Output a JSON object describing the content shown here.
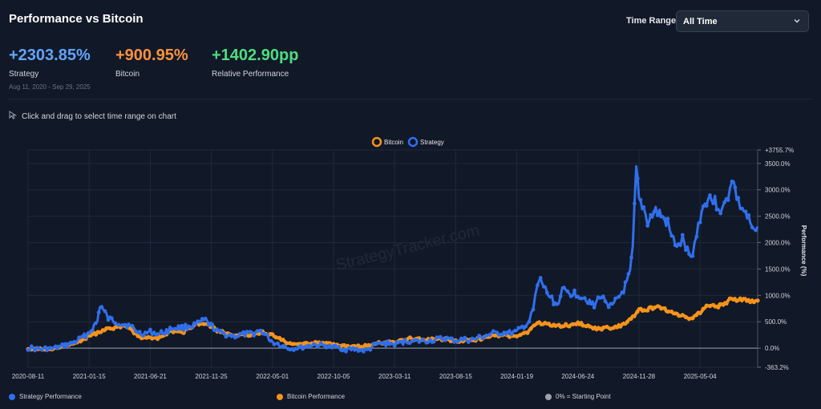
{
  "header": {
    "title": "Performance vs Bitcoin",
    "time_range_label": "Time Range:",
    "time_range_value": "All Time"
  },
  "stats": {
    "strategy": {
      "value": "+2303.85%",
      "label": "Strategy",
      "color": "#60a5fa"
    },
    "bitcoin": {
      "value": "+900.95%",
      "label": "Bitcoin",
      "color": "#fb923c"
    },
    "relative": {
      "value": "+1402.90pp",
      "label": "Relative Performance",
      "color": "#4ade80"
    },
    "date_range": "Aug 11, 2020 - Sep 29, 2025"
  },
  "hint": "Click and drag to select time range on chart",
  "watermark": "StrategyTracker.com",
  "bottom_legend": {
    "strategy": "Strategy Performance",
    "bitcoin": "Bitcoin Performance",
    "baseline": "0% = Starting Point"
  },
  "chart_data": {
    "type": "line",
    "ylabel": "Performance (%)",
    "ylim": [
      -363.2,
      3755.7
    ],
    "y_ticks": [
      -363.2,
      0,
      500,
      1000,
      1500,
      2000,
      2500,
      3000,
      3500,
      3755.7
    ],
    "y_tick_labels": [
      "-363.2%",
      "0.0%",
      "500.0%",
      "1000.0%",
      "1500.0%",
      "2000.0%",
      "2500.0%",
      "3000.0%",
      "3500.0%",
      "+3755.7%"
    ],
    "x_tick_labels": [
      "2020-08-11",
      "2021-01-15",
      "2021-06-21",
      "2021-11-25",
      "2022-05-01",
      "2022-10-05",
      "2023-03-11",
      "2023-08-15",
      "2024-01-19",
      "2024-06-24",
      "2024-11-28",
      "2025-05-04"
    ],
    "x_range": [
      "2020-08-11",
      "2025-09-29"
    ],
    "legend_position": "top-center",
    "series": [
      {
        "name": "Bitcoin",
        "color": "#f7931a",
        "points": [
          [
            "2020-08-11",
            0
          ],
          [
            "2020-09-20",
            -20
          ],
          [
            "2020-10-25",
            10
          ],
          [
            "2020-11-20",
            60
          ],
          [
            "2020-12-20",
            120
          ],
          [
            "2021-01-15",
            230
          ],
          [
            "2021-02-10",
            310
          ],
          [
            "2021-03-05",
            360
          ],
          [
            "2021-04-10",
            430
          ],
          [
            "2021-05-01",
            380
          ],
          [
            "2021-05-25",
            200
          ],
          [
            "2021-06-21",
            180
          ],
          [
            "2021-07-15",
            190
          ],
          [
            "2021-08-15",
            320
          ],
          [
            "2021-09-15",
            310
          ],
          [
            "2021-10-20",
            450
          ],
          [
            "2021-11-10",
            480
          ],
          [
            "2021-12-10",
            340
          ],
          [
            "2022-01-20",
            250
          ],
          [
            "2022-03-05",
            240
          ],
          [
            "2022-04-01",
            300
          ],
          [
            "2022-05-01",
            250
          ],
          [
            "2022-06-20",
            60
          ],
          [
            "2022-08-15",
            110
          ],
          [
            "2022-10-05",
            70
          ],
          [
            "2022-11-15",
            30
          ],
          [
            "2022-12-30",
            40
          ],
          [
            "2023-01-25",
            100
          ],
          [
            "2023-03-11",
            110
          ],
          [
            "2023-04-15",
            180
          ],
          [
            "2023-06-15",
            160
          ],
          [
            "2023-07-15",
            170
          ],
          [
            "2023-08-15",
            130
          ],
          [
            "2023-10-01",
            150
          ],
          [
            "2023-11-15",
            230
          ],
          [
            "2024-01-19",
            240
          ],
          [
            "2024-02-20",
            320
          ],
          [
            "2024-03-12",
            480
          ],
          [
            "2024-04-10",
            450
          ],
          [
            "2024-05-15",
            420
          ],
          [
            "2024-06-24",
            470
          ],
          [
            "2024-07-20",
            430
          ],
          [
            "2024-08-20",
            360
          ],
          [
            "2024-09-20",
            400
          ],
          [
            "2024-10-20",
            450
          ],
          [
            "2024-11-12",
            590
          ],
          [
            "2024-11-28",
            720
          ],
          [
            "2024-12-20",
            740
          ],
          [
            "2025-01-20",
            780
          ],
          [
            "2025-02-20",
            680
          ],
          [
            "2025-03-20",
            610
          ],
          [
            "2025-04-10",
            560
          ],
          [
            "2025-05-04",
            690
          ],
          [
            "2025-05-25",
            810
          ],
          [
            "2025-06-20",
            790
          ],
          [
            "2025-07-15",
            900
          ],
          [
            "2025-08-15",
            930
          ],
          [
            "2025-09-10",
            880
          ],
          [
            "2025-09-29",
            900.95
          ]
        ]
      },
      {
        "name": "Strategy",
        "color": "#2f6fed",
        "points": [
          [
            "2020-08-11",
            0
          ],
          [
            "2020-09-20",
            -20
          ],
          [
            "2020-10-25",
            0
          ],
          [
            "2020-11-20",
            60
          ],
          [
            "2020-12-20",
            160
          ],
          [
            "2021-01-15",
            300
          ],
          [
            "2021-02-05",
            500
          ],
          [
            "2021-02-12",
            820
          ],
          [
            "2021-03-05",
            560
          ],
          [
            "2021-04-10",
            460
          ],
          [
            "2021-05-01",
            410
          ],
          [
            "2021-05-25",
            280
          ],
          [
            "2021-06-21",
            300
          ],
          [
            "2021-07-15",
            260
          ],
          [
            "2021-08-15",
            380
          ],
          [
            "2021-09-15",
            380
          ],
          [
            "2021-10-20",
            460
          ],
          [
            "2021-11-10",
            520
          ],
          [
            "2021-12-10",
            320
          ],
          [
            "2022-01-20",
            220
          ],
          [
            "2022-03-05",
            270
          ],
          [
            "2022-04-01",
            330
          ],
          [
            "2022-05-01",
            120
          ],
          [
            "2022-06-20",
            -20
          ],
          [
            "2022-08-15",
            70
          ],
          [
            "2022-10-05",
            20
          ],
          [
            "2022-11-15",
            -30
          ],
          [
            "2022-12-30",
            -40
          ],
          [
            "2023-01-25",
            80
          ],
          [
            "2023-03-11",
            80
          ],
          [
            "2023-04-15",
            130
          ],
          [
            "2023-06-15",
            140
          ],
          [
            "2023-07-15",
            180
          ],
          [
            "2023-08-15",
            150
          ],
          [
            "2023-10-01",
            160
          ],
          [
            "2023-11-15",
            270
          ],
          [
            "2024-01-19",
            300
          ],
          [
            "2024-02-20",
            500
          ],
          [
            "2024-03-01",
            720
          ],
          [
            "2024-03-12",
            1180
          ],
          [
            "2024-03-20",
            1280
          ],
          [
            "2024-04-10",
            1000
          ],
          [
            "2024-05-01",
            820
          ],
          [
            "2024-05-15",
            1080
          ],
          [
            "2024-06-24",
            1020
          ],
          [
            "2024-07-20",
            920
          ],
          [
            "2024-08-05",
            780
          ],
          [
            "2024-08-20",
            1000
          ],
          [
            "2024-09-20",
            780
          ],
          [
            "2024-10-20",
            1100
          ],
          [
            "2024-11-05",
            1400
          ],
          [
            "2024-11-12",
            1880
          ],
          [
            "2024-11-21",
            3380
          ],
          [
            "2024-11-28",
            2800
          ],
          [
            "2024-12-10",
            2650
          ],
          [
            "2024-12-20",
            2400
          ],
          [
            "2025-01-10",
            2600
          ],
          [
            "2025-01-20",
            2550
          ],
          [
            "2025-02-10",
            2350
          ],
          [
            "2025-02-20",
            2100
          ],
          [
            "2025-03-10",
            1900
          ],
          [
            "2025-03-20",
            2050
          ],
          [
            "2025-04-10",
            1680
          ],
          [
            "2025-04-25",
            2150
          ],
          [
            "2025-05-04",
            2500
          ],
          [
            "2025-05-25",
            2900
          ],
          [
            "2025-06-20",
            2700
          ],
          [
            "2025-07-01",
            2600
          ],
          [
            "2025-07-15",
            2900
          ],
          [
            "2025-07-25",
            3250
          ],
          [
            "2025-08-10",
            2750
          ],
          [
            "2025-08-25",
            2600
          ],
          [
            "2025-09-10",
            2350
          ],
          [
            "2025-09-20",
            2150
          ],
          [
            "2025-09-29",
            2303.85
          ]
        ]
      }
    ]
  },
  "colors": {
    "baseline": "#9ca3af",
    "grid": "#1f2a3a",
    "axis_text": "#d1d5db"
  }
}
